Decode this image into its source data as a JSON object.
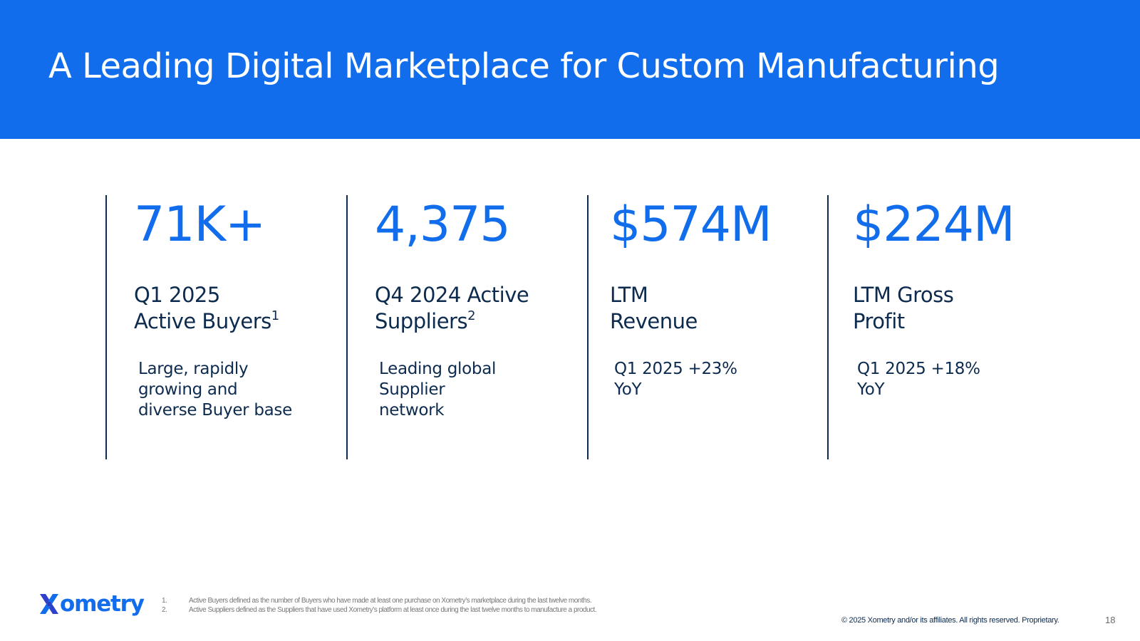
{
  "header": {
    "title": "A Leading Digital Marketplace for Custom Manufacturing",
    "background_color": "#116DEC"
  },
  "stats": [
    {
      "value": "71K+",
      "label_line1": "Q1 2025",
      "label_line2": "Active Buyers",
      "label_sup": "1",
      "desc_lines": [
        "Large, rapidly",
        "growing and",
        "diverse Buyer base"
      ]
    },
    {
      "value": "4,375",
      "label_line1": "Q4 2024 Active",
      "label_line2": "Suppliers",
      "label_sup": "2",
      "desc_lines": [
        "Leading global",
        "Supplier",
        "network"
      ]
    },
    {
      "value": "$574M",
      "label_line1": "LTM",
      "label_line2": "Revenue",
      "label_sup": "",
      "desc_lines": [
        "Q1 2025 +23%",
        "YoY"
      ]
    },
    {
      "value": "$224M",
      "label_line1": "LTM Gross",
      "label_line2": "Profit",
      "label_sup": "",
      "desc_lines": [
        "Q1 2025 +18%",
        "YoY"
      ]
    }
  ],
  "colors": {
    "accent": "#116DEC",
    "navy": "#0D2B4E"
  },
  "footer": {
    "logo_text": "ometry",
    "logo_icon": "xometry-x-icon",
    "footnotes": [
      {
        "num": "1.",
        "text": "Active Buyers defined as the number of Buyers who have made at least one purchase on Xometry’s marketplace during the last twelve months."
      },
      {
        "num": "2.",
        "text": "Active Suppliers defined as the Suppliers that have used Xometry’s platform at least once during the last twelve months to manufacture a product."
      }
    ],
    "copyright": "© 2025 Xometry and/or its affiliates. All rights reserved. Proprietary.",
    "page_number": "18"
  }
}
